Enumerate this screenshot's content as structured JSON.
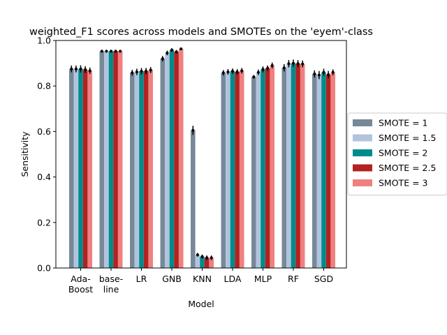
{
  "chart_data": {
    "type": "bar",
    "title": "weighted_F1 scores across models and SMOTEs on the 'eyem'-class",
    "xlabel": "Model",
    "ylabel": "Sensitivity",
    "ylim": [
      0,
      1.0
    ],
    "yticks": [
      0.0,
      0.2,
      0.4,
      0.6,
      0.8,
      1.0
    ],
    "ytick_labels": [
      "0.0",
      "0.2",
      "0.4",
      "0.6",
      "0.8",
      "1.0"
    ],
    "categories": [
      "Ada-\nBoost",
      "base-\nline",
      "LR",
      "GNB",
      "KNN",
      "LDA",
      "MLP",
      "RF",
      "SGD"
    ],
    "legend_position": "center-right-outside",
    "error_bars": true,
    "series": [
      {
        "name": "SMOTE = 1",
        "color": "#778899",
        "values": [
          0.875,
          0.953,
          0.858,
          0.92,
          0.605,
          0.858,
          0.84,
          0.88,
          0.853
        ],
        "errors": [
          0.015,
          0.006,
          0.013,
          0.012,
          0.02,
          0.012,
          0.008,
          0.016,
          0.016
        ]
      },
      {
        "name": "SMOTE = 1.5",
        "color": "#b0c4de",
        "values": [
          0.875,
          0.953,
          0.862,
          0.945,
          0.058,
          0.862,
          0.86,
          0.898,
          0.848
        ],
        "errors": [
          0.015,
          0.006,
          0.014,
          0.01,
          0.008,
          0.012,
          0.012,
          0.016,
          0.018
        ]
      },
      {
        "name": "SMOTE = 2",
        "color": "#008b8b",
        "values": [
          0.875,
          0.953,
          0.865,
          0.958,
          0.05,
          0.865,
          0.873,
          0.9,
          0.86
        ],
        "errors": [
          0.016,
          0.006,
          0.014,
          0.008,
          0.009,
          0.012,
          0.013,
          0.016,
          0.016
        ]
      },
      {
        "name": "SMOTE = 2.5",
        "color": "#b22222",
        "values": [
          0.872,
          0.953,
          0.865,
          0.95,
          0.045,
          0.862,
          0.878,
          0.898,
          0.85
        ],
        "errors": [
          0.015,
          0.006,
          0.014,
          0.008,
          0.01,
          0.012,
          0.012,
          0.016,
          0.016
        ]
      },
      {
        "name": "SMOTE = 3",
        "color": "#f08080",
        "values": [
          0.867,
          0.953,
          0.87,
          0.963,
          0.045,
          0.867,
          0.89,
          0.897,
          0.86
        ],
        "errors": [
          0.014,
          0.005,
          0.013,
          0.006,
          0.01,
          0.012,
          0.013,
          0.015,
          0.013
        ]
      }
    ]
  }
}
